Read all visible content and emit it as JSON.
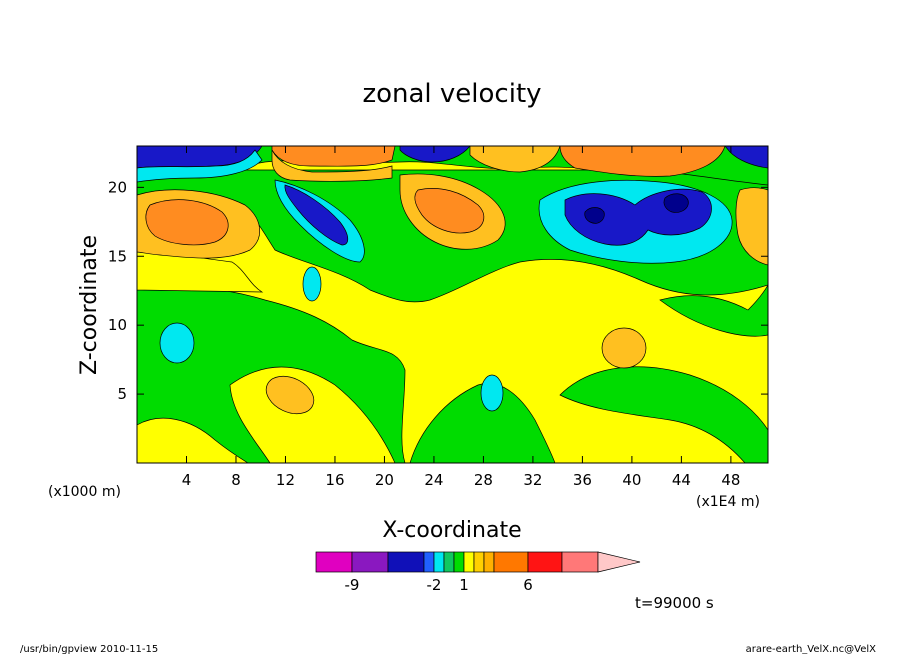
{
  "chart_data": {
    "type": "heatmap",
    "title": "zonal velocity",
    "xlabel": "X-coordinate",
    "ylabel": "Z-coordinate",
    "x_unit": "(x1E4 m)",
    "y_unit": "(x1000 m)",
    "xlim": [
      0,
      51
    ],
    "ylim": [
      0,
      23
    ],
    "x_ticks": [
      4,
      8,
      12,
      16,
      20,
      24,
      28,
      32,
      36,
      40,
      44,
      48
    ],
    "y_ticks": [
      5,
      10,
      15,
      20
    ],
    "colorbar": {
      "levels": [
        -9,
        -2,
        1,
        6
      ],
      "tick_labels": [
        "-9",
        "-2",
        "1",
        "6"
      ],
      "colors": [
        "#e000c0",
        "#8a18c0",
        "#1010b8",
        "#2060ff",
        "#00e8f0",
        "#10c860",
        "#00dc00",
        "#ffff00",
        "#ffd000",
        "#ffb000",
        "#ff7800",
        "#ff1414",
        "#ff7878",
        "#ffc8c8"
      ]
    },
    "field_colors": {
      "deep_negative": "#00008c",
      "negative": "#1818c8",
      "weak_negative": "#00e8f0",
      "near_zero": "#00dc00",
      "weak_positive": "#ffff00",
      "positive": "#ffc020",
      "strong_positive": "#ff8c20"
    },
    "annotations": {
      "time": "t=99000 s",
      "footer_left": "/usr/bin/gpview   2010-11-15",
      "footer_right": "arare-earth_VelX.nc@VelX"
    }
  }
}
